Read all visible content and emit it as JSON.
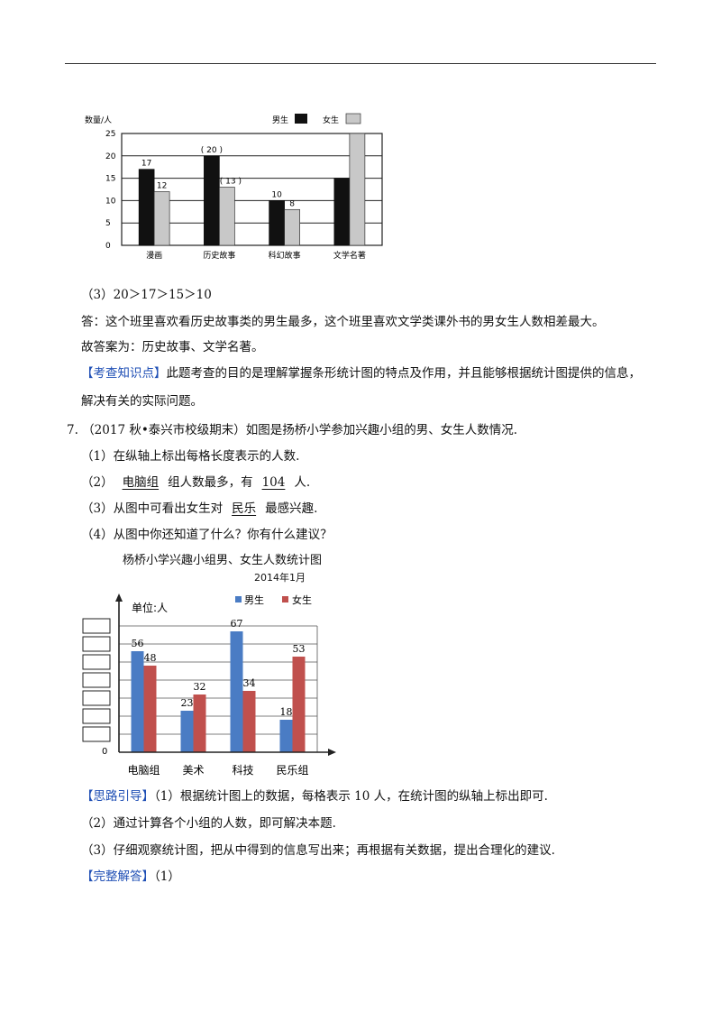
{
  "chart1": {
    "legend_male": "男生",
    "legend_female": "女生",
    "ylabel": "数量/人",
    "y_ticks": [
      "0",
      "5",
      "10",
      "15",
      "20",
      "25"
    ],
    "label_male_0": "17",
    "label_female_0": "12",
    "label_male_1": "( 20 )",
    "label_female_1": "( 13 )",
    "label_male_2": "10",
    "label_female_2": "8"
  },
  "chart_data": [
    {
      "type": "bar",
      "categories": [
        "漫画",
        "历史故事",
        "科幻故事",
        "文学名著"
      ],
      "series": [
        {
          "name": "男生",
          "values": [
            17,
            20,
            10,
            15
          ]
        },
        {
          "name": "女生",
          "values": [
            12,
            13,
            8,
            25
          ]
        }
      ],
      "ylabel": "数量/人",
      "ylim": [
        0,
        25
      ],
      "yticks": [
        0,
        5,
        10,
        15,
        20,
        25
      ],
      "grid": true,
      "legend": "top-right"
    },
    {
      "type": "bar",
      "title": "杨桥小学兴趣小组男、女生人数统计图",
      "subtitle": "2014年1月",
      "ylabel": "单位:人",
      "categories": [
        "电脑组",
        "美术",
        "科技",
        "民乐组"
      ],
      "series": [
        {
          "name": "男生",
          "values": [
            56,
            23,
            67,
            18
          ]
        },
        {
          "name": "女生",
          "values": [
            48,
            32,
            34,
            53
          ]
        }
      ],
      "ylim": [
        0,
        70
      ],
      "grid": true,
      "legend": "top"
    }
  ],
  "text": {
    "l1": "（3）20＞17＞15＞10",
    "l2": "答：这个班里喜欢看历史故事类的男生最多，这个班里喜欢文学类课外书的男女生人数相差最大。",
    "l3": "故答案为：历史故事、文学名著。",
    "l4_tag": "【考查知识点】",
    "l4": "此题考查的目的是理解掌握条形统计图的特点及作用，并且能够根据统计图提供的信息，",
    "l5": "解决有关的实际问题。",
    "q7": "7. （2017 秋•泰兴市校级期末）如图是扬桥小学参加兴趣小组的男、女生人数情况.",
    "q7_1": "（1）在纵轴上标出每格长度表示的人数.",
    "q7_2a": "（2）",
    "q7_2_ans1": "电脑组",
    "q7_2b": "组人数最多，有",
    "q7_2_ans2": "104",
    "q7_2c": "人.",
    "q7_3a": "（3）从图中可看出女生对",
    "q7_3_ans": "民乐",
    "q7_3b": "最感兴趣.",
    "q7_4": "（4）从图中你还知道了什么？你有什么建议？",
    "hint_tag": "【思路引导】",
    "hint1": "（1）根据统计图上的数据，每格表示 10 人，在统计图的纵轴上标出即可.",
    "hint2": "（2）通过计算各个小组的人数，即可解决本题.",
    "hint3": "（3）仔细观察统计图，把从中得到的信息写出来；再根据有关数据，提出合理化的建议.",
    "full_tag": "【完整解答】",
    "full1": "（1）"
  },
  "chart2": {
    "title": "杨桥小学兴趣小组男、女生人数统计图",
    "subtitle": "2014年1月",
    "unit": "单位:人",
    "legend_male": "男生",
    "legend_female": "女生",
    "zero": "0"
  },
  "colors": {
    "male1": "#111111",
    "female1": "#c8c8c8",
    "male2": "#4a7cc4",
    "female2": "#c0504d"
  }
}
